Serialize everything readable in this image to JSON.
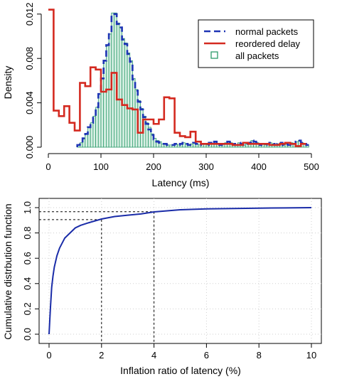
{
  "chart_data": [
    {
      "type": "histogram",
      "xlabel": "Latency (ms)",
      "ylabel": "Density",
      "xlim": [
        0,
        500
      ],
      "ylim": [
        0,
        0.0125
      ],
      "xticks": [
        0,
        100,
        200,
        300,
        400,
        500
      ],
      "yticks": [
        0.0,
        0.004,
        0.008,
        0.012
      ],
      "ytick_labels": [
        "0.000",
        "0.004",
        "0.008",
        "0.012"
      ],
      "grid": false,
      "legend_position": "top-right",
      "legend": [
        "normal packets",
        "reordered delay",
        "all packets"
      ],
      "colors": {
        "normal": "#1f35b5",
        "reordered": "#d42a20",
        "all": "#2c9a6a"
      },
      "bin_width": 5,
      "all_bins_x0": [
        55,
        60,
        65,
        70,
        75,
        80,
        85,
        90,
        95,
        100,
        105,
        110,
        115,
        120,
        125,
        130,
        135,
        140,
        145,
        150,
        155,
        160,
        165,
        170,
        175,
        180,
        185,
        190,
        195,
        200,
        205,
        210,
        215,
        220,
        225,
        230,
        235,
        240,
        245,
        250,
        255,
        260,
        265,
        270,
        275,
        280,
        285,
        290,
        295,
        300,
        305,
        310,
        315,
        320,
        325,
        330,
        335,
        340,
        345,
        350,
        355,
        360,
        365,
        370,
        375,
        380,
        385,
        390,
        395,
        400,
        405,
        410,
        415,
        420,
        425,
        430,
        435,
        440,
        445,
        450,
        455,
        460,
        465,
        470,
        475,
        480,
        485,
        490
      ],
      "all_values": [
        0.0002,
        0.0004,
        0.0008,
        0.0012,
        0.0018,
        0.0022,
        0.0028,
        0.0036,
        0.0048,
        0.0062,
        0.0078,
        0.0092,
        0.0102,
        0.0121,
        0.0121,
        0.0112,
        0.0108,
        0.0098,
        0.0094,
        0.0085,
        0.0078,
        0.0062,
        0.0052,
        0.0042,
        0.0035,
        0.0028,
        0.0022,
        0.0018,
        0.0012,
        0.0008,
        0.0006,
        0.0005,
        0.0003,
        0.0003,
        0.0002,
        0.0002,
        0.0002,
        0.0003,
        0.0002,
        0.0003,
        0.0004,
        0.0003,
        0.0002,
        0.0003,
        0.0004,
        0.0003,
        0.0002,
        0.0003,
        0.0003,
        0.0002,
        0.0004,
        0.0003,
        0.0005,
        0.0003,
        0.0002,
        0.0003,
        0.0004,
        0.0005,
        0.0004,
        0.0003,
        0.0002,
        0.0004,
        0.0003,
        0.0002,
        0.0003,
        0.0004,
        0.0006,
        0.0005,
        0.0004,
        0.0002,
        0.0003,
        0.0002,
        0.0003,
        0.0004,
        0.0003,
        0.0002,
        0.0003,
        0.0004,
        0.0002,
        0.0003,
        0.0002,
        0.0004,
        0.0003,
        0.0005,
        0.0006,
        0.0004,
        0.0003,
        0.0002
      ],
      "normal_values": [
        0.0002,
        0.0004,
        0.0008,
        0.0012,
        0.0018,
        0.0022,
        0.0028,
        0.0036,
        0.0048,
        0.0062,
        0.0078,
        0.0092,
        0.0102,
        0.012,
        0.012,
        0.0111,
        0.0108,
        0.0097,
        0.0093,
        0.0084,
        0.0077,
        0.0061,
        0.0051,
        0.0041,
        0.0034,
        0.0027,
        0.0021,
        0.0016,
        0.0011,
        0.0007,
        0.0005,
        0.0004,
        0.0003,
        0.0003,
        0.0002,
        0.0002,
        0.0002,
        0.0003,
        0.0002,
        0.0003,
        0.0004,
        0.0003,
        0.0002,
        0.0003,
        0.0004,
        0.0003,
        0.0002,
        0.0003,
        0.0003,
        0.0002,
        0.0004,
        0.0003,
        0.0005,
        0.0003,
        0.0002,
        0.0003,
        0.0004,
        0.0005,
        0.0004,
        0.0003,
        0.0002,
        0.0004,
        0.0003,
        0.0002,
        0.0003,
        0.0004,
        0.0006,
        0.0005,
        0.0004,
        0.0002,
        0.0003,
        0.0002,
        0.0003,
        0.0004,
        0.0003,
        0.0002,
        0.0003,
        0.0004,
        0.0002,
        0.0003,
        0.0002,
        0.0004,
        0.0003,
        0.0005,
        0.0006,
        0.0004,
        0.0003,
        0.0002
      ],
      "reordered_bin_edges": [
        0,
        10,
        20,
        30,
        40,
        50,
        60,
        70,
        80,
        90,
        100,
        110,
        120,
        130,
        140,
        150,
        160,
        170,
        180,
        190,
        200,
        210,
        220,
        230,
        240,
        250,
        260,
        270,
        280,
        290,
        300,
        310,
        320,
        330,
        340,
        350,
        360,
        370,
        380,
        390,
        400,
        410,
        420,
        430,
        440,
        450,
        460,
        470,
        480,
        490
      ],
      "reordered_values": [
        0.0124,
        0.0033,
        0.0028,
        0.0037,
        0.0022,
        0.0015,
        0.0058,
        0.0055,
        0.0072,
        0.007,
        0.005,
        0.0052,
        0.0067,
        0.0043,
        0.0038,
        0.0035,
        0.0034,
        0.0013,
        0.0025,
        0.0025,
        0.0021,
        0.0025,
        0.0045,
        0.0044,
        0.0013,
        0.001,
        0.0009,
        0.0014,
        0.0005,
        0.0003,
        0.0003,
        0.0003,
        0.0003,
        0.0003,
        0.0003,
        0.0002,
        0.0002,
        0.0004,
        0.0003,
        0.0003,
        0.0003,
        0.0003,
        0.0002,
        0.0002,
        0.0003,
        0.0004,
        0.0003,
        0.0001,
        0.0003
      ]
    },
    {
      "type": "line",
      "xlabel": "Inflation ratio of latency (%)",
      "ylabel": "Cumulative distrbution function",
      "xlim": [
        0,
        10
      ],
      "ylim": [
        0,
        1.0
      ],
      "xticks": [
        0,
        2,
        4,
        6,
        8,
        10
      ],
      "yticks": [
        0.0,
        0.2,
        0.4,
        0.6,
        0.8,
        1.0
      ],
      "ytick_labels": [
        "0.0",
        "0.2",
        "0.4",
        "0.6",
        "0.8",
        "1.0"
      ],
      "grid": true,
      "color": "#1a2ca8",
      "x": [
        0,
        0.05,
        0.1,
        0.15,
        0.2,
        0.3,
        0.4,
        0.5,
        0.6,
        0.8,
        1.0,
        1.2,
        1.5,
        2.0,
        2.5,
        3.0,
        3.5,
        4.0,
        4.5,
        5.0,
        6.0,
        7.0,
        8.0,
        9.0,
        10.0
      ],
      "y": [
        0.0,
        0.2,
        0.37,
        0.46,
        0.53,
        0.62,
        0.68,
        0.72,
        0.76,
        0.8,
        0.84,
        0.86,
        0.88,
        0.91,
        0.93,
        0.94,
        0.95,
        0.966,
        0.975,
        0.983,
        0.99,
        0.993,
        0.996,
        0.998,
        1.0
      ],
      "reference_lines": [
        {
          "x": 2,
          "y": 0.905
        },
        {
          "x": 4,
          "y": 0.968
        }
      ]
    }
  ]
}
